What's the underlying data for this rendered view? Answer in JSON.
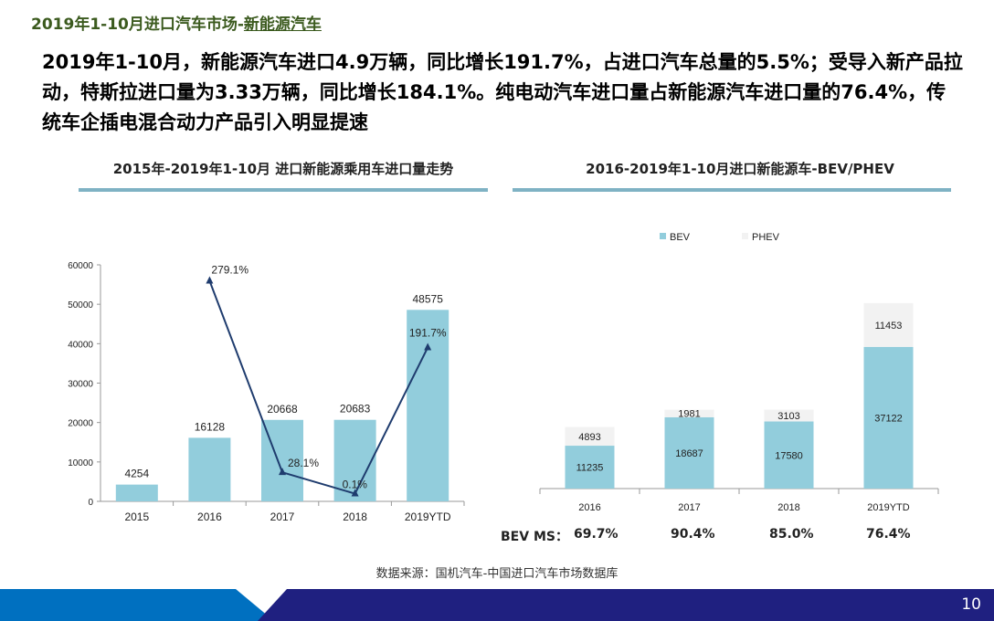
{
  "header": {
    "title_prefix": "2019年1-10月进口汽车市场-",
    "title_suffix": "新能源汽车"
  },
  "summary": "2019年1-10月，新能源汽车进口4.9万辆，同比增长191.7%，占进口汽车总量的5.5%；受导入新产品拉动，特斯拉进口量为3.33万辆，同比增长184.1%。纯电动汽车进口量占新能源汽车进口量的76.4%，传统车企插电混合动力产品引入明显提速",
  "source": "数据来源：国机汽车-中国进口汽车市场数据库",
  "page_number": "10",
  "colors": {
    "bar": "#92cddc",
    "line": "#1f3c6e",
    "phev": "#f2f2f2",
    "footer_dark": "#1f2080",
    "footer_light": "#0070c0"
  },
  "bev_ms": {
    "label": "BEV MS：",
    "values": [
      "69.7%",
      "90.4%",
      "85.0%",
      "76.4%"
    ]
  },
  "chart_data": [
    {
      "type": "bar",
      "title": "2015年-2019年1-10月 进口新能源乘用车进口量走势",
      "categories": [
        "2015",
        "2016",
        "2017",
        "2018",
        "2019YTD"
      ],
      "values": [
        4254,
        16128,
        20668,
        20683,
        48575
      ],
      "ylim": [
        0,
        60000
      ],
      "yticks": [
        "0",
        "10000",
        "20000",
        "30000",
        "40000",
        "50000",
        "60000"
      ],
      "growth_line": {
        "type": "line",
        "categories": [
          "2016",
          "2017",
          "2018",
          "2019YTD"
        ],
        "values": [
          279.1,
          28.1,
          0.1,
          191.7
        ],
        "labels": [
          "279.1%",
          "28.1%",
          "0.1%",
          "191.7%"
        ],
        "ylim": [
          -10,
          300
        ]
      }
    },
    {
      "type": "bar",
      "stacked": true,
      "title": "2016-2019年1-10月进口新能源车-BEV/PHEV",
      "categories": [
        "2016",
        "2017",
        "2018",
        "2019YTD"
      ],
      "legend": [
        "BEV",
        "PHEV"
      ],
      "legend_position": "top",
      "series": [
        {
          "name": "BEV",
          "values": [
            11235,
            18687,
            17580,
            37122
          ]
        },
        {
          "name": "PHEV",
          "values": [
            4893,
            1981,
            3103,
            11453
          ]
        }
      ],
      "ylim": [
        0,
        50000
      ]
    }
  ]
}
